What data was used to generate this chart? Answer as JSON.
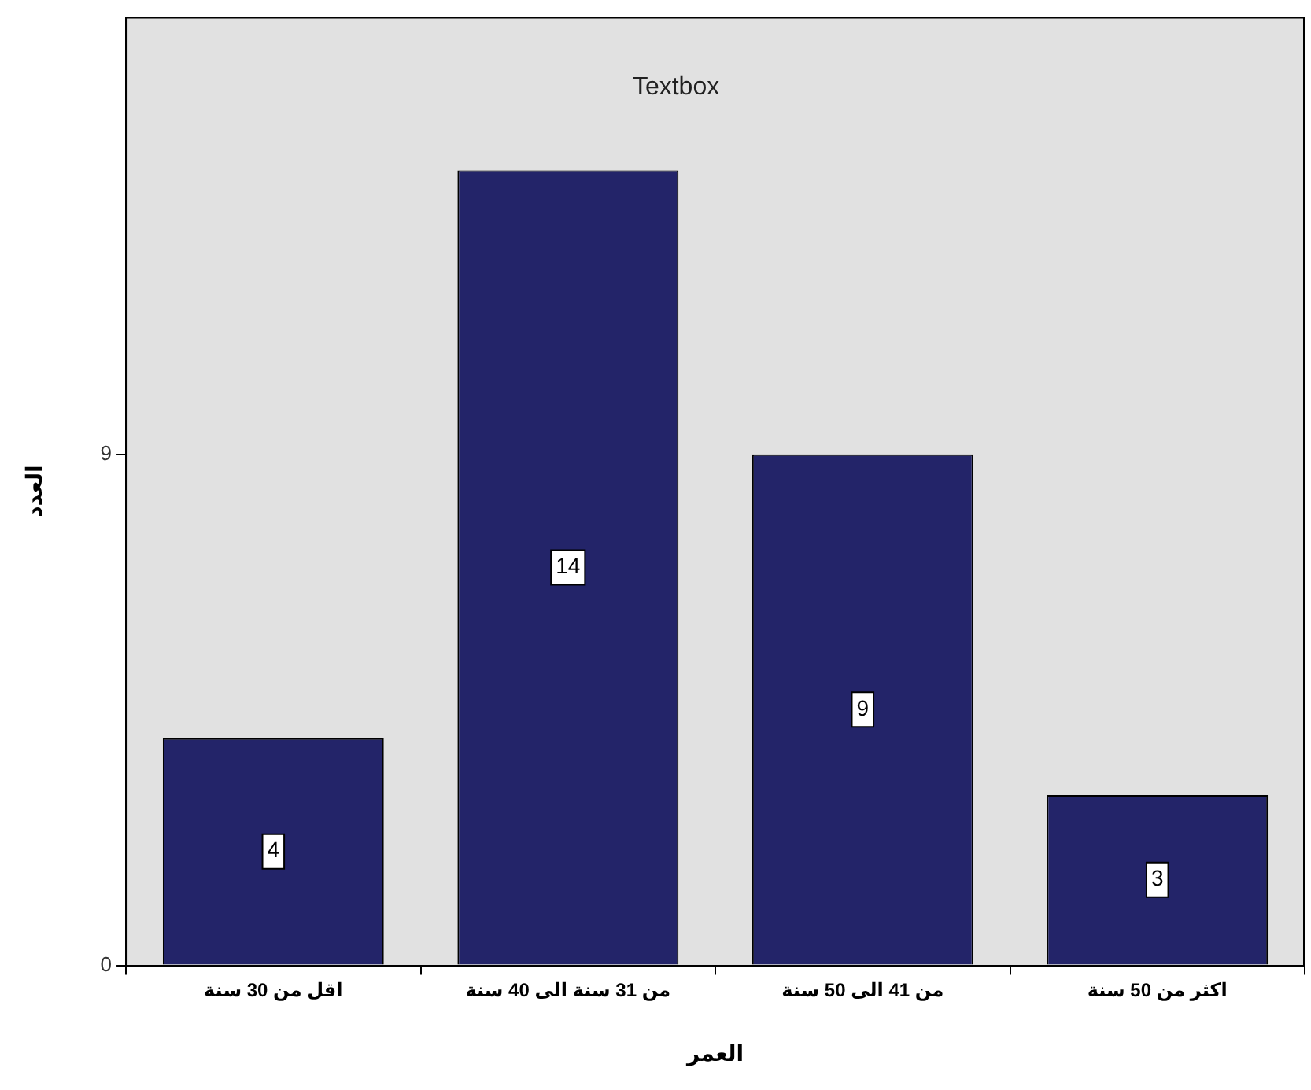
{
  "chart_data": {
    "type": "bar",
    "xlabel": "العمر",
    "ylabel": "العدد",
    "categories": [
      "اقل من 30 سنة",
      "من 31 سنة الى 40 سنة",
      "من 41 الى 50 سنة",
      "اكثر من 50 سنة"
    ],
    "values": [
      4,
      14,
      9,
      3
    ],
    "color": "#232469",
    "ylim": [
      0,
      16.7
    ],
    "yticks": [
      0,
      9
    ],
    "data_labels": true,
    "annotations": [
      "Textbox"
    ]
  }
}
